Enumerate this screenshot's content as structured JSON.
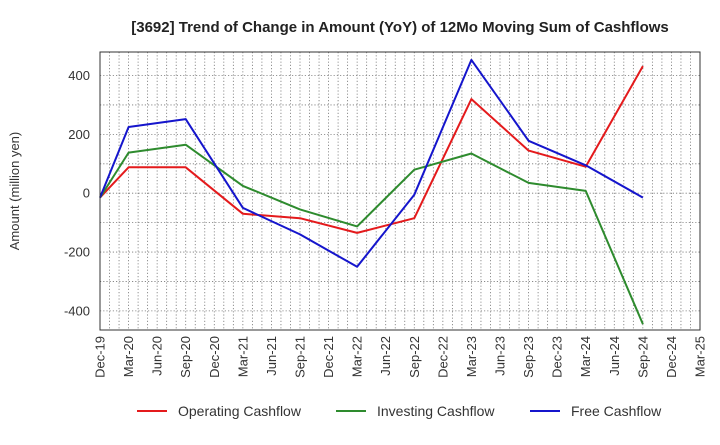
{
  "chart_data": {
    "type": "line",
    "title": "[3692]  Trend of Change in Amount (YoY) of 12Mo Moving Sum of Cashflows",
    "xlabel": "",
    "ylabel": "Amount (million yen)",
    "ylim": [
      -465,
      480
    ],
    "yticks": [
      -400,
      -200,
      0,
      200,
      400
    ],
    "grid": true,
    "legend_position": "bottom",
    "categories": [
      "Dec-19",
      "Mar-20",
      "Jun-20",
      "Sep-20",
      "Dec-20",
      "Mar-21",
      "Jun-21",
      "Sep-21",
      "Dec-21",
      "Mar-22",
      "Jun-22",
      "Sep-22",
      "Dec-22",
      "Mar-23",
      "Jun-23",
      "Sep-23",
      "Dec-23",
      "Mar-24",
      "Jun-24",
      "Sep-24",
      "Dec-24",
      "Mar-25"
    ],
    "series": [
      {
        "name": "Operating Cashflow",
        "color": "#e41a1c",
        "values": [
          -15,
          88,
          null,
          88,
          null,
          -70,
          null,
          -85,
          null,
          -135,
          null,
          -85,
          null,
          320,
          null,
          145,
          null,
          90,
          null,
          432,
          null,
          null
        ]
      },
      {
        "name": "Investing Cashflow",
        "color": "#2e8b2e",
        "values": [
          -15,
          138,
          null,
          165,
          null,
          25,
          null,
          -55,
          null,
          -113,
          null,
          80,
          null,
          135,
          null,
          35,
          null,
          8,
          null,
          -445,
          null,
          null
        ]
      },
      {
        "name": "Free Cashflow",
        "color": "#1515cc",
        "values": [
          -15,
          225,
          null,
          252,
          null,
          -50,
          null,
          -140,
          null,
          -250,
          null,
          -5,
          null,
          453,
          null,
          178,
          null,
          95,
          null,
          -15,
          null,
          null
        ]
      }
    ]
  }
}
